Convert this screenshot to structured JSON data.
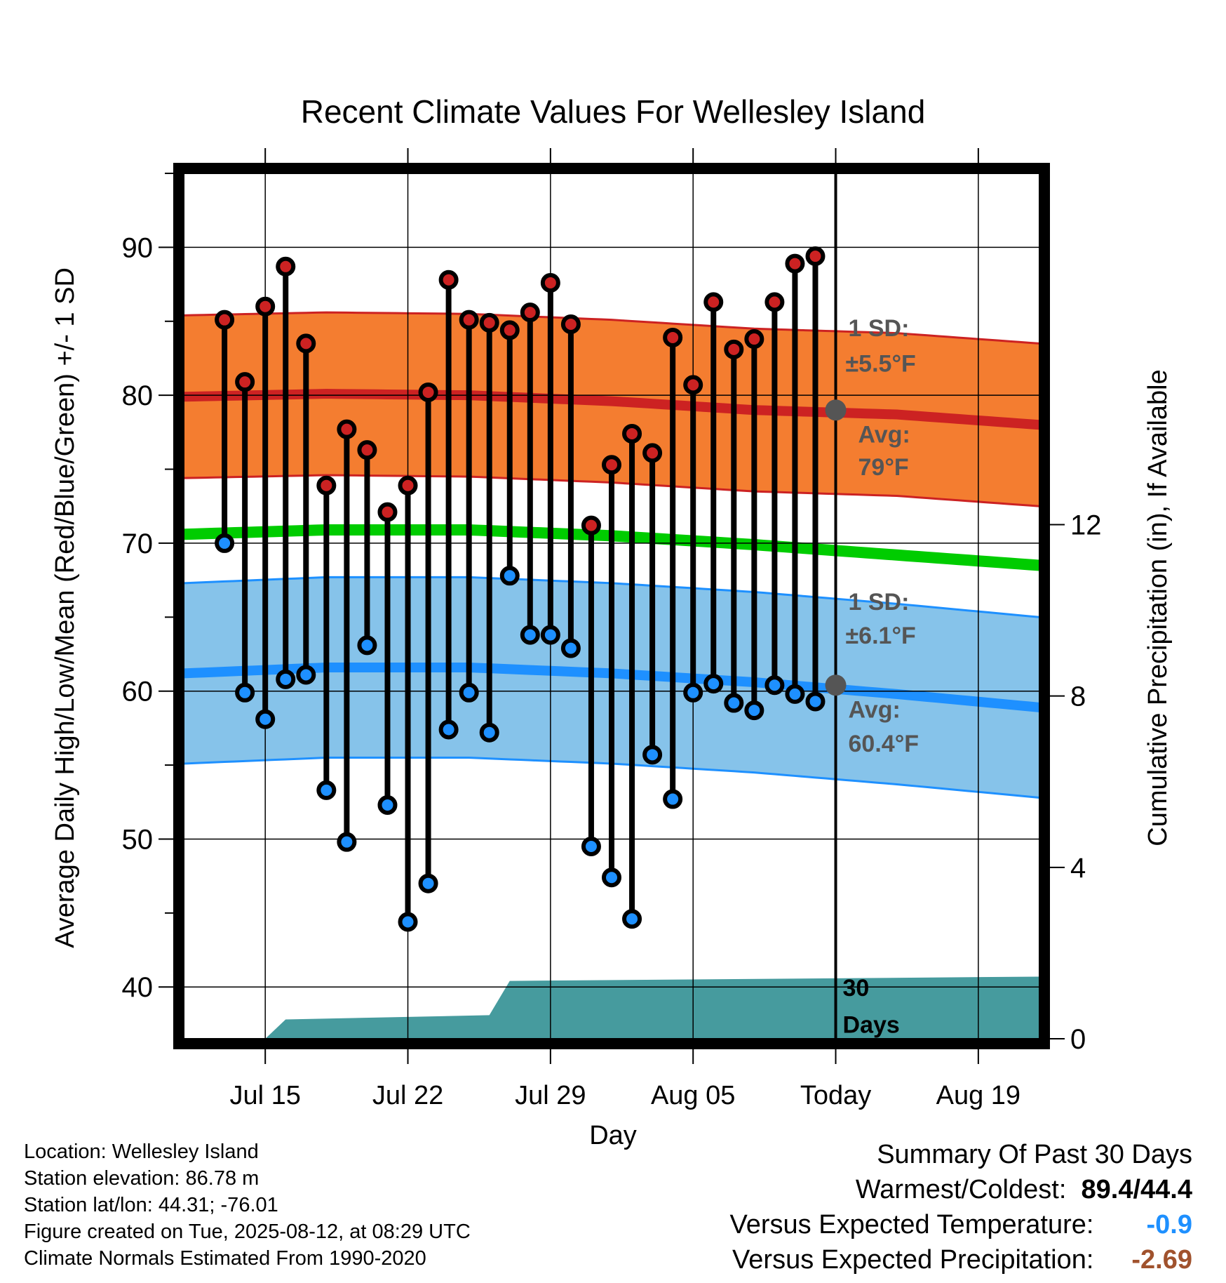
{
  "chart_data": {
    "type": "line",
    "title": "Recent Climate Values For Wellesley Island",
    "xlabel": "Day",
    "ylabel": "Average Daily High/Low/Mean (Red/Blue/Green) +/- 1 SD",
    "y2label": "Cumulative Precipitation (in), If Available",
    "ylim": [
      36.5,
      95
    ],
    "y2lim": [
      0,
      20.2
    ],
    "xlim": [
      "2025-07-11",
      "2025-08-22"
    ],
    "yticks": [
      "40",
      "50",
      "60",
      "70",
      "80",
      "90"
    ],
    "y2ticks": [
      "0",
      "4",
      "8",
      "12"
    ],
    "xticks": [
      {
        "date": "2025-07-15",
        "label": "Jul 15"
      },
      {
        "date": "2025-07-22",
        "label": "Jul 22"
      },
      {
        "date": "2025-07-29",
        "label": "Jul 29"
      },
      {
        "date": "2025-08-05",
        "label": "Aug 05"
      },
      {
        "date": "2025-08-12",
        "label": "Today"
      },
      {
        "date": "2025-08-19",
        "label": "Aug 19"
      }
    ],
    "today": "2025-08-12",
    "days_label": "30\nDays",
    "dates": [
      "2025-07-13",
      "2025-07-14",
      "2025-07-15",
      "2025-07-16",
      "2025-07-17",
      "2025-07-18",
      "2025-07-19",
      "2025-07-20",
      "2025-07-21",
      "2025-07-22",
      "2025-07-23",
      "2025-07-24",
      "2025-07-25",
      "2025-07-26",
      "2025-07-27",
      "2025-07-28",
      "2025-07-29",
      "2025-07-30",
      "2025-07-31",
      "2025-08-01",
      "2025-08-02",
      "2025-08-03",
      "2025-08-04",
      "2025-08-05",
      "2025-08-06",
      "2025-08-07",
      "2025-08-08",
      "2025-08-09",
      "2025-08-10",
      "2025-08-11"
    ],
    "series": [
      {
        "name": "High",
        "color": "#cc2222",
        "values": [
          85.1,
          80.9,
          86.0,
          88.7,
          83.5,
          73.9,
          77.7,
          76.3,
          72.1,
          73.9,
          80.2,
          87.8,
          85.1,
          84.9,
          84.4,
          85.6,
          87.6,
          84.8,
          71.2,
          75.3,
          77.4,
          76.1,
          83.9,
          80.7,
          86.3,
          83.1,
          83.8,
          86.3,
          88.9,
          89.4
        ]
      },
      {
        "name": "Low",
        "color": "#1e90ff",
        "values": [
          70.0,
          59.9,
          58.1,
          60.8,
          61.1,
          53.3,
          49.8,
          63.1,
          52.3,
          44.4,
          47.0,
          57.4,
          59.9,
          57.2,
          67.8,
          63.8,
          63.8,
          62.9,
          49.5,
          47.4,
          44.6,
          55.7,
          52.7,
          59.9,
          60.5,
          59.2,
          58.7,
          60.4,
          59.8,
          59.3
        ]
      }
    ],
    "normals": {
      "dates": [
        "2025-07-11",
        "2025-07-18",
        "2025-07-25",
        "2025-08-01",
        "2025-08-08",
        "2025-08-15",
        "2025-08-22"
      ],
      "high_avg": [
        79.9,
        80.1,
        80.0,
        79.6,
        79.0,
        78.7,
        78.0
      ],
      "high_sd": 5.5,
      "low_avg": [
        61.2,
        61.6,
        61.6,
        61.2,
        60.6,
        59.8,
        58.9
      ],
      "low_sd": 6.1,
      "mean_avg": [
        70.6,
        70.9,
        70.9,
        70.5,
        69.9,
        69.2,
        68.5
      ]
    },
    "precip": {
      "dates": [
        "2025-07-11",
        "2025-07-15",
        "2025-07-16",
        "2025-07-26",
        "2025-07-27",
        "2025-08-22"
      ],
      "values": [
        0,
        0,
        0.45,
        0.55,
        1.35,
        1.45
      ]
    },
    "annotations": {
      "high_sd": {
        "line1": "1 SD:",
        "line2": "±5.5°F"
      },
      "high_avg": {
        "line1": "Avg:",
        "line2": "79°F",
        "value": 79
      },
      "low_sd": {
        "line1": "1 SD:",
        "line2": "±6.1°F"
      },
      "low_avg": {
        "line1": "Avg:",
        "line2": "60.4°F",
        "value": 60.4
      }
    },
    "colors": {
      "high_band": "#f47d30",
      "high_line": "#cc2222",
      "low_band": "#86c3ea",
      "low_line": "#1e90ff",
      "mean_line": "#00cc00",
      "precip": "#469b9e",
      "marker_edge": "#000000",
      "today_dot": "#555555"
    }
  },
  "info": {
    "location": "Location: Wellesley Island",
    "elevation": "Station elevation: 86.78 m",
    "latlon": "Station lat/lon: 44.31; -76.01",
    "created": "Figure created on Tue, 2025-08-12, at 08:29 UTC",
    "normals": "Climate Normals Estimated From 1990-2020"
  },
  "summary": {
    "title": "Summary Of Past 30 Days",
    "warmest_label": "Warmest/Coldest:",
    "warmest_value": "89.4/44.4",
    "temp_label": "Versus Expected Temperature:",
    "temp_value": "-0.9",
    "precip_label": "Versus Expected Precipitation:",
    "precip_value": "-2.69"
  }
}
